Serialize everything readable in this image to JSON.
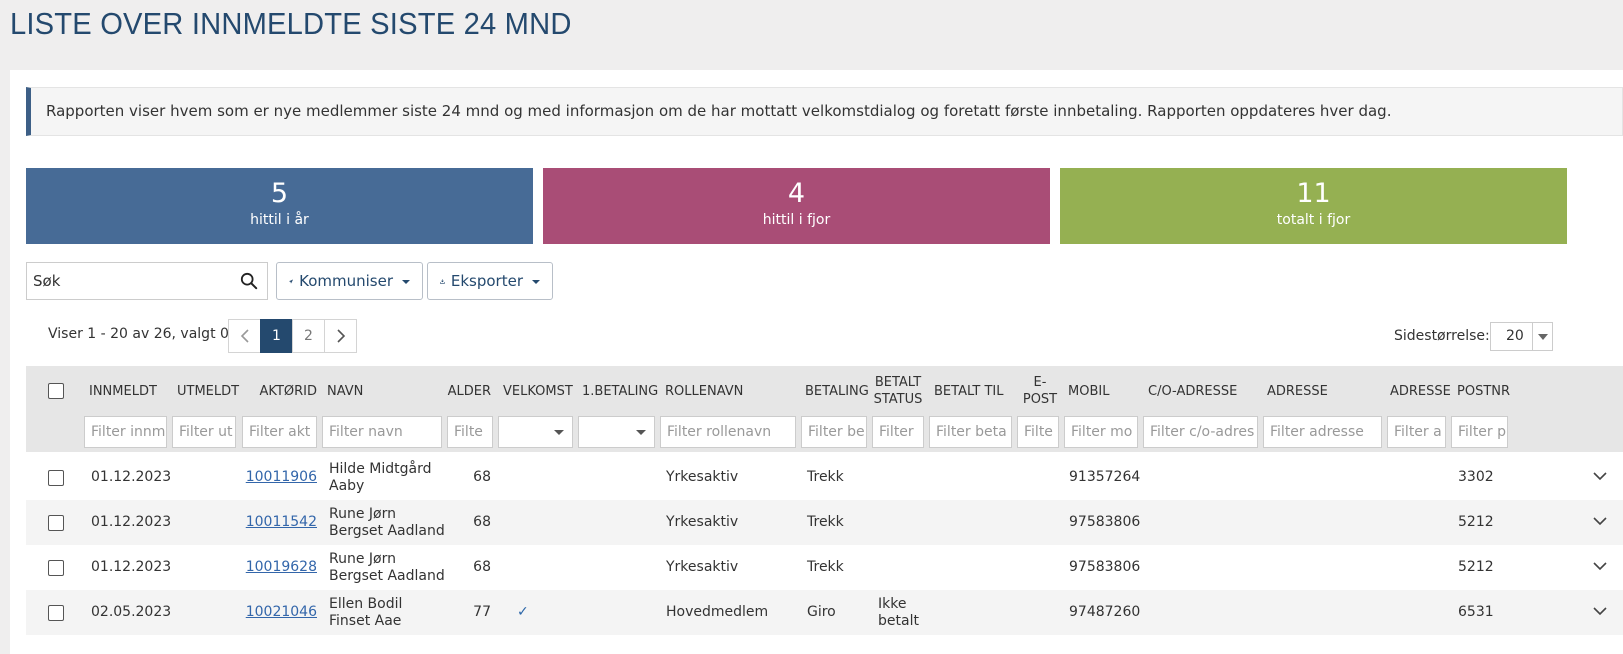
{
  "title": "LISTE OVER INNMELDTE SISTE 24 MND",
  "info": "Rapporten viser hvem som er nye medlemmer siste 24 mnd og med informasjon om de har mottatt velkomstdialog og foretatt første innbetaling. Rapporten oppdateres hver dag.",
  "stats": [
    {
      "value": "5",
      "label": "hittil i år",
      "color": "#476b96"
    },
    {
      "value": "4",
      "label": "hittil i fjor",
      "color": "#a94d76"
    },
    {
      "value": "11",
      "label": "totalt i fjor",
      "color": "#95b052"
    }
  ],
  "toolbar": {
    "search_placeholder": "Søk",
    "search_icon": "search-icon",
    "kommuniser_label": "Kommuniser",
    "kommuniser_icon": "paper-plane-icon",
    "eksporter_label": "Eksporter",
    "eksporter_icon": "download-icon"
  },
  "pager": {
    "text": "Viser 1 - 20 av 26, valgt 0",
    "pages": [
      "1",
      "2"
    ],
    "current": "1",
    "size_label": "Sidestørrelse:",
    "size_value": "20"
  },
  "columns": {
    "innmeldt": "INNMELDT",
    "utmeldt": "UTMELDT",
    "aktorid": "AKTØRID",
    "navn": "NAVN",
    "alder": "ALDER",
    "velkomst": "VELKOMST",
    "betaling1": "1.BETALING",
    "rollenavn": "ROLLENAVN",
    "betaling": "BETALING",
    "betalt_status_1": "BETALT",
    "betalt_status_2": "STATUS",
    "betalt_til": "BETALT TIL",
    "epost_1": "E-",
    "epost_2": "POST",
    "mobil": "MOBIL",
    "co_adresse": "C/O-ADRESSE",
    "adresse": "ADRESSE",
    "adresse2": "ADRESSE",
    "postnr": "POSTNR"
  },
  "filters": {
    "innmeldt": "Filter innm",
    "utmeldt": "Filter ut",
    "aktorid": "Filter akt",
    "navn": "Filter navn",
    "alder": "Filte",
    "rollenavn": "Filter rollenavn",
    "betaling": "Filter be",
    "betalt_status": "Filter",
    "betalt_til": "Filter beta",
    "epost": "Filte",
    "mobil": "Filter mo",
    "co_adresse": "Filter c/o-adres",
    "adresse": "Filter adresse",
    "adresse2": "Filter a",
    "postnr": "Filter p"
  },
  "rows": [
    {
      "innmeldt": "01.12.2023",
      "aktorid": "10011906",
      "navn1": "Hilde Midtgård",
      "navn2": "Aaby",
      "alder": "68",
      "velkomst": "",
      "rollenavn": "Yrkesaktiv",
      "betaling": "Trekk",
      "status1": "",
      "status2": "",
      "mobil": "91357264",
      "postnr": "3302"
    },
    {
      "innmeldt": "01.12.2023",
      "aktorid": "10011542",
      "navn1": "Rune Jørn",
      "navn2": "Bergset Aadland",
      "alder": "68",
      "velkomst": "",
      "rollenavn": "Yrkesaktiv",
      "betaling": "Trekk",
      "status1": "",
      "status2": "",
      "mobil": "97583806",
      "postnr": "5212"
    },
    {
      "innmeldt": "01.12.2023",
      "aktorid": "10019628",
      "navn1": "Rune Jørn",
      "navn2": "Bergset Aadland",
      "alder": "68",
      "velkomst": "",
      "rollenavn": "Yrkesaktiv",
      "betaling": "Trekk",
      "status1": "",
      "status2": "",
      "mobil": "97583806",
      "postnr": "5212"
    },
    {
      "innmeldt": "02.05.2023",
      "aktorid": "10021046",
      "navn1": "Ellen Bodil",
      "navn2": "Finset Aae",
      "alder": "77",
      "velkomst": "✓",
      "rollenavn": "Hovedmedlem",
      "betaling": "Giro",
      "status1": "Ikke",
      "status2": "betalt",
      "mobil": "97487260",
      "postnr": "6531"
    }
  ]
}
